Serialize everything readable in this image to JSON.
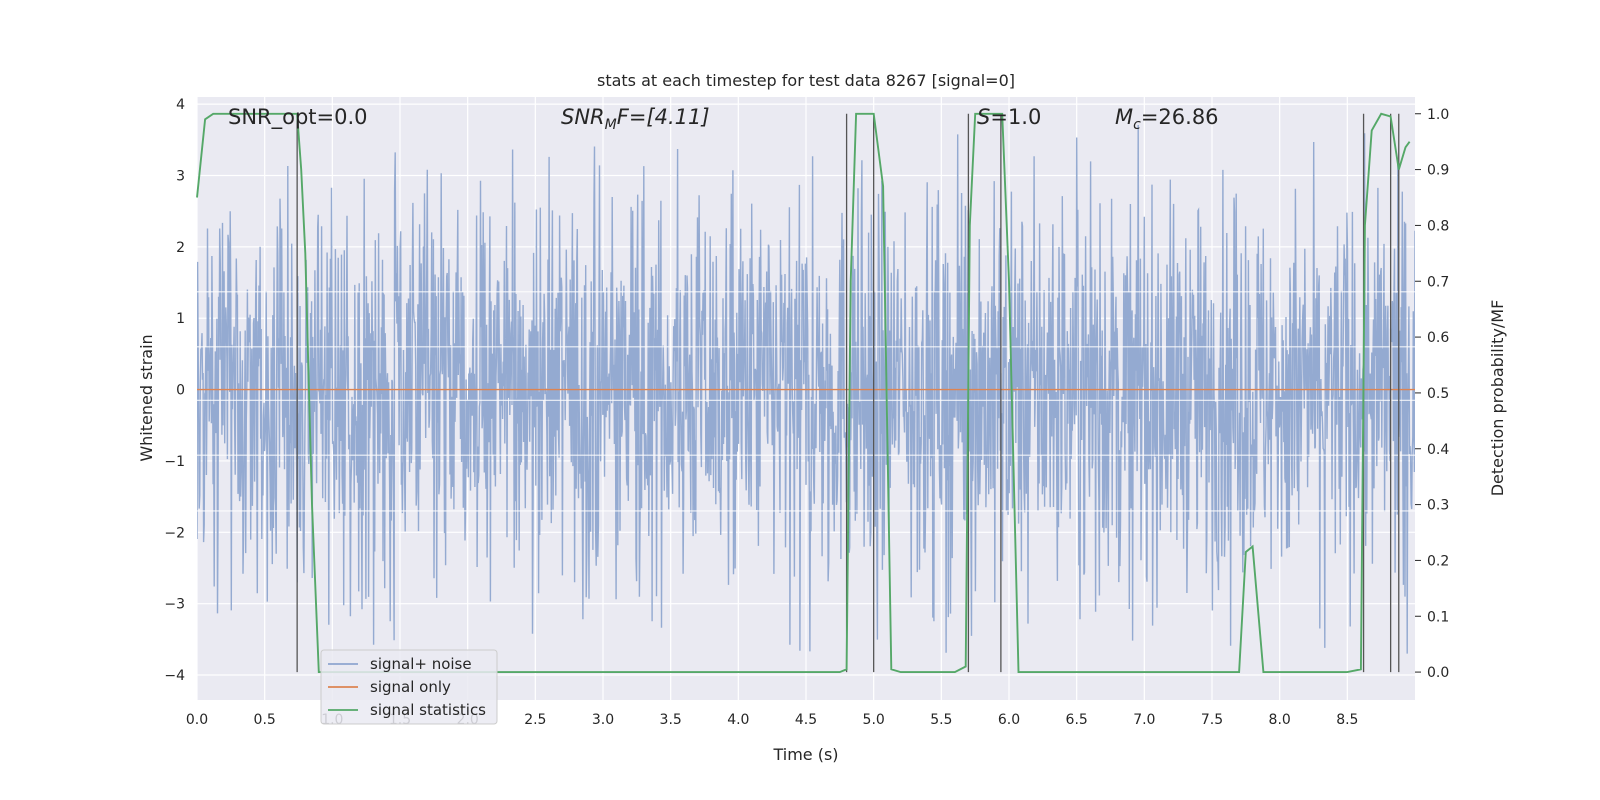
{
  "chart_data": {
    "type": "line",
    "title": "stats at each timestep for test data 8267 [signal=0]",
    "xlabel": "Time (s)",
    "ylabel": "Whitened strain",
    "y2label": "Detection probability/MF",
    "xlim": [
      0.0,
      9.0
    ],
    "ylim": [
      -4.35,
      4.1
    ],
    "y2lim": [
      -0.05,
      1.03
    ],
    "xticks": [
      "0.0",
      "0.5",
      "1.0",
      "1.5",
      "2.0",
      "2.5",
      "3.0",
      "3.5",
      "4.0",
      "4.5",
      "5.0",
      "5.5",
      "6.0",
      "6.5",
      "7.0",
      "7.5",
      "8.0",
      "8.5"
    ],
    "xtick_values": [
      0.0,
      0.5,
      1.0,
      1.5,
      2.0,
      2.5,
      3.0,
      3.5,
      4.0,
      4.5,
      5.0,
      5.5,
      6.0,
      6.5,
      7.0,
      7.5,
      8.0,
      8.5
    ],
    "yticks": [
      "−4",
      "−3",
      "−2",
      "−1",
      "0",
      "1",
      "2",
      "3",
      "4"
    ],
    "ytick_values": [
      -4,
      -3,
      -2,
      -1,
      0,
      1,
      2,
      3,
      4
    ],
    "y2ticks": [
      "0.0",
      "0.1",
      "0.2",
      "0.3",
      "0.4",
      "0.5",
      "0.6",
      "0.7",
      "0.8",
      "0.9",
      "1.0"
    ],
    "y2tick_values": [
      0.0,
      0.1,
      0.2,
      0.3,
      0.4,
      0.5,
      0.6,
      0.7,
      0.8,
      0.9,
      1.0
    ],
    "grid": true,
    "legend_position": "lower-left",
    "annotations": {
      "snr_opt": "SNR_opt=0.0",
      "snr_mf_main": "SNR",
      "snr_mf_sub": "M",
      "snr_mf_rest": "F=[4.11]",
      "s_main": "S",
      "s_rest": "=1.0",
      "mc_main": "M",
      "mc_sub": "c",
      "mc_rest": "=26.86"
    },
    "series": [
      {
        "name": "signal+ noise",
        "color": "#8fa6cf",
        "kind": "noise",
        "typical_range": [
          -2.0,
          2.2
        ],
        "extreme_range": [
          -3.7,
          3.75
        ]
      },
      {
        "name": "signal only",
        "color": "#dd8452",
        "kind": "constant",
        "value": 0.0
      },
      {
        "name": "signal statistics",
        "color": "#55a868",
        "kind": "line",
        "axis": "right",
        "x": [
          0.0,
          0.06,
          0.12,
          0.2,
          0.3,
          0.4,
          0.5,
          0.6,
          0.7,
          0.74,
          0.77,
          0.8,
          0.85,
          0.9,
          1.0,
          2.0,
          3.0,
          4.0,
          4.75,
          4.8,
          4.83,
          4.87,
          4.92,
          5.0,
          5.07,
          5.13,
          5.2,
          5.4,
          5.6,
          5.68,
          5.71,
          5.75,
          5.85,
          5.95,
          6.0,
          6.07,
          6.5,
          7.0,
          7.5,
          7.7,
          7.75,
          7.8,
          7.88,
          8.0,
          8.5,
          8.6,
          8.63,
          8.68,
          8.75,
          8.82,
          8.88,
          8.93,
          8.96
        ],
        "y": [
          0.85,
          0.99,
          1.0,
          1.0,
          1.0,
          1.0,
          1.0,
          1.0,
          1.0,
          1.0,
          0.9,
          0.75,
          0.3,
          0.0,
          0.0,
          0.0,
          0.0,
          0.0,
          0.0,
          0.005,
          0.7,
          1.0,
          1.0,
          1.0,
          0.87,
          0.005,
          0.0,
          0.0,
          0.0,
          0.01,
          0.8,
          1.0,
          1.0,
          1.0,
          0.7,
          0.0,
          0.0,
          0.0,
          0.0,
          0.0,
          0.215,
          0.225,
          0.0,
          0.0,
          0.0,
          0.005,
          0.8,
          0.97,
          1.0,
          0.995,
          0.9,
          0.94,
          0.95
        ]
      }
    ],
    "vertical_markers": {
      "color": "#555555",
      "x": [
        0.74,
        4.8,
        5.0,
        5.7,
        5.94,
        8.62,
        8.82,
        8.88
      ],
      "y2_top": 1.0,
      "y2_bottom": 0.0
    }
  }
}
